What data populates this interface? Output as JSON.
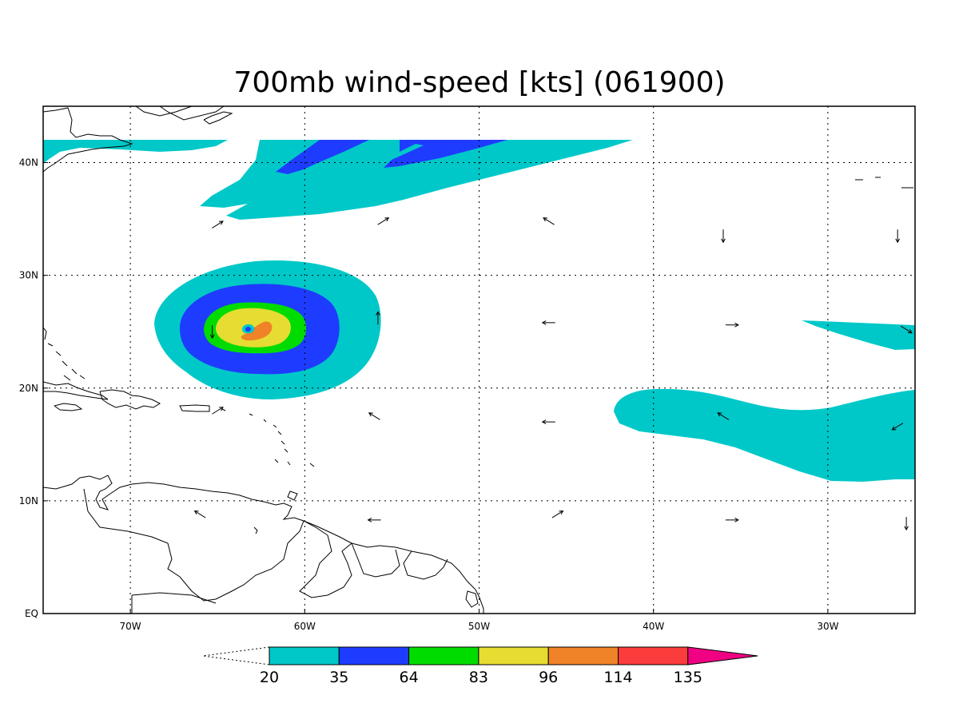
{
  "title": "700mb wind-speed [kts] (061900)",
  "map": {
    "lon_range": [
      -75,
      -25
    ],
    "lat_range": [
      0,
      45
    ],
    "x_ticks": [
      {
        "lon": -70,
        "label": "70W"
      },
      {
        "lon": -60,
        "label": "60W"
      },
      {
        "lon": -50,
        "label": "50W"
      },
      {
        "lon": -40,
        "label": "40W"
      },
      {
        "lon": -30,
        "label": "30W"
      }
    ],
    "y_ticks": [
      {
        "lat": 0,
        "label": "EQ"
      },
      {
        "lat": 10,
        "label": "10N"
      },
      {
        "lat": 20,
        "label": "20N"
      },
      {
        "lat": 30,
        "label": "30N"
      },
      {
        "lat": 40,
        "label": "40N"
      }
    ],
    "grid": true
  },
  "colorbar": {
    "levels": [
      "20",
      "35",
      "64",
      "83",
      "96",
      "114",
      "135"
    ],
    "colors": [
      "#00c8c8",
      "#1e3cff",
      "#00dc00",
      "#e6dc32",
      "#f08228",
      "#fa3c3c",
      "#f00082"
    ]
  },
  "features": {
    "hurricane_center": {
      "lon": -63.1,
      "lat": 25.2
    },
    "wind_arrows": [
      {
        "lon": -65.0,
        "lat": 34.5,
        "dir": "ne"
      },
      {
        "lon": -55.5,
        "lat": 34.8,
        "dir": "ne"
      },
      {
        "lon": -46.0,
        "lat": 34.8,
        "dir": "nw"
      },
      {
        "lon": -36.0,
        "lat": 33.5,
        "dir": "s"
      },
      {
        "lon": -26.0,
        "lat": 33.5,
        "dir": "s"
      },
      {
        "lon": -55.8,
        "lat": 26.2,
        "dir": "n"
      },
      {
        "lon": -46.0,
        "lat": 25.8,
        "dir": "w"
      },
      {
        "lon": -35.5,
        "lat": 25.6,
        "dir": "e"
      },
      {
        "lon": -25.5,
        "lat": 25.2,
        "dir": "se"
      },
      {
        "lon": -65.0,
        "lat": 18.0,
        "dir": "ne"
      },
      {
        "lon": -56.0,
        "lat": 17.5,
        "dir": "nw"
      },
      {
        "lon": -46.0,
        "lat": 17.0,
        "dir": "w"
      },
      {
        "lon": -36.0,
        "lat": 17.5,
        "dir": "nw"
      },
      {
        "lon": -26.0,
        "lat": 16.6,
        "dir": "sw"
      },
      {
        "lon": -65.3,
        "lat": 25.0,
        "dir": "s"
      },
      {
        "lon": -66.0,
        "lat": 8.8,
        "dir": "nw"
      },
      {
        "lon": -56.0,
        "lat": 8.3,
        "dir": "w"
      },
      {
        "lon": -45.5,
        "lat": 8.8,
        "dir": "ne"
      },
      {
        "lon": -35.5,
        "lat": 8.3,
        "dir": "e"
      },
      {
        "lon": -25.5,
        "lat": 8.0,
        "dir": "s"
      }
    ]
  }
}
